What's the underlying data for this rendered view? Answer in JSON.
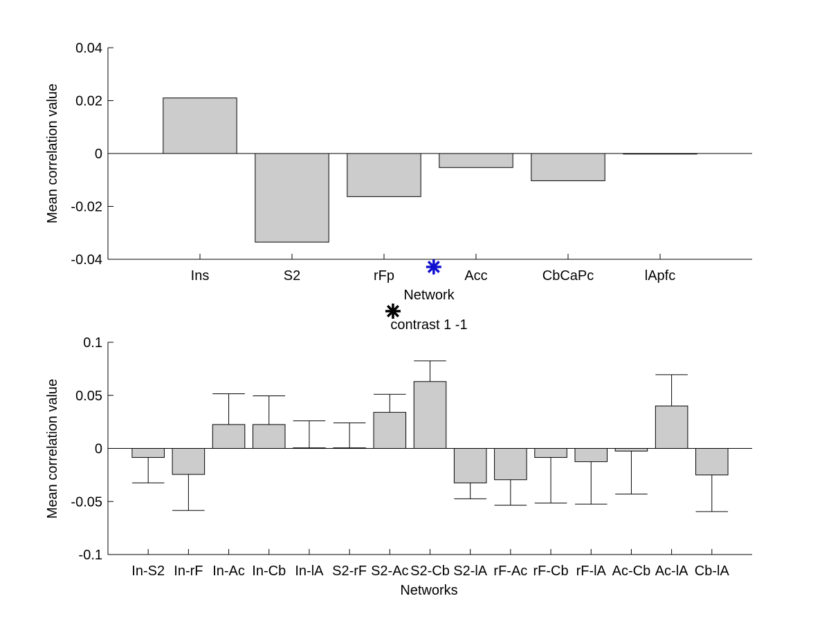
{
  "chart_data": [
    {
      "type": "bar",
      "categories": [
        "Ins",
        "S2",
        "rFp",
        "Acc",
        "CbCaPc",
        "lApfc"
      ],
      "values": [
        0.021,
        -0.0335,
        -0.0163,
        -0.0053,
        -0.0103,
        0
      ],
      "title": "",
      "xlabel": "Network",
      "ylabel": "Mean correlation value",
      "ylim": [
        -0.04,
        0.04
      ],
      "yticks": [
        0.04,
        0.02,
        0,
        -0.02,
        -0.04
      ],
      "ytick_labels": [
        "0.04",
        "0.02",
        "0",
        "-0.02",
        "-0.04"
      ],
      "bar_color": "#cccccc",
      "marker": {
        "category": "Acc",
        "position": "left",
        "color": "#1010d0",
        "symbol": "asterisk"
      },
      "grid": false
    },
    {
      "type": "bar",
      "categories": [
        "In-S2",
        "In-rF",
        "In-Ac",
        "In-Cb",
        "In-lA",
        "S2-rF",
        "S2-Ac",
        "S2-Cb",
        "S2-lA",
        "rF-Ac",
        "rF-Cb",
        "rF-lA",
        "Ac-Cb",
        "Ac-lA",
        "Cb-lA"
      ],
      "values": [
        -0.0085,
        -0.0245,
        0.0225,
        0.0225,
        0.0005,
        0.0005,
        0.034,
        0.063,
        -0.0325,
        -0.0295,
        -0.0085,
        -0.0125,
        -0.0025,
        0.04,
        -0.025
      ],
      "error_ends": [
        -0.0325,
        -0.0585,
        0.0515,
        0.0495,
        0.026,
        0.024,
        0.051,
        0.0825,
        -0.0475,
        -0.0535,
        -0.0515,
        -0.0525,
        -0.043,
        0.0695,
        -0.0595
      ],
      "title": "contrast 1 -1",
      "xlabel": "Networks",
      "ylabel": "Mean correlation value",
      "ylim": [
        -0.1,
        0.1
      ],
      "yticks": [
        0.1,
        0.05,
        0,
        -0.05,
        -0.1
      ],
      "ytick_labels": [
        "0.1",
        "0.05",
        "0",
        "-0.05",
        "-0.1"
      ],
      "bar_color": "#cccccc",
      "marker": {
        "category": "S2-Cb",
        "position": "above-title",
        "color": "#000000",
        "symbol": "asterisk"
      },
      "grid": false
    }
  ]
}
